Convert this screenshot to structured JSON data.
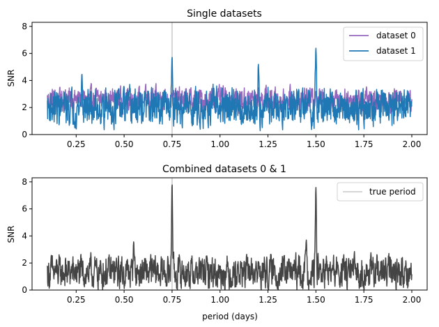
{
  "chart_data": [
    {
      "type": "line",
      "title": "Single datasets",
      "xlabel": "",
      "ylabel": "SNR",
      "xlim": [
        0.02,
        2.08
      ],
      "ylim": [
        0,
        8.3
      ],
      "xticks": [
        "0.25",
        "0.50",
        "0.75",
        "1.00",
        "1.25",
        "1.50",
        "1.75",
        "2.00"
      ],
      "yticks": [
        "0",
        "2",
        "4",
        "6",
        "8"
      ],
      "grid": false,
      "legend": "top-right",
      "vline": {
        "x": 0.75,
        "color": "#c8c8c8"
      },
      "series": [
        {
          "name": "dataset 0",
          "color": "#9467bd",
          "x_range": [
            0.1,
            2.0
          ],
          "baseline": 2.6,
          "spread": 1.3,
          "peaks": [
            {
              "x": 0.75,
              "y": 3.0
            },
            {
              "x": 1.5,
              "y": 3.2
            }
          ]
        },
        {
          "name": "dataset 1",
          "color": "#1f77b4",
          "x_range": [
            0.1,
            2.0
          ],
          "baseline": 2.0,
          "spread": 2.0,
          "peaks": [
            {
              "x": 0.75,
              "y": 5.8
            },
            {
              "x": 1.5,
              "y": 6.4
            },
            {
              "x": 1.2,
              "y": 5.2
            },
            {
              "x": 0.28,
              "y": 4.5
            }
          ]
        }
      ]
    },
    {
      "type": "line",
      "title": "Combined datasets 0 & 1",
      "xlabel": "period (days)",
      "ylabel": "SNR",
      "xlim": [
        0.02,
        2.08
      ],
      "ylim": [
        0,
        8.3
      ],
      "xticks": [
        "0.25",
        "0.50",
        "0.75",
        "1.00",
        "1.25",
        "1.50",
        "1.75",
        "2.00"
      ],
      "yticks": [
        "0",
        "2",
        "4",
        "6",
        "8"
      ],
      "grid": false,
      "legend": "top-right",
      "vline": {
        "x": 0.75,
        "color": "#c8c8c8",
        "legend": "true period"
      },
      "series": [
        {
          "color": "#444444",
          "x_range": [
            0.1,
            2.0
          ],
          "baseline": 1.3,
          "spread": 1.8,
          "peaks": [
            {
              "x": 0.75,
              "y": 7.9
            },
            {
              "x": 1.5,
              "y": 7.6
            },
            {
              "x": 0.55,
              "y": 3.6
            },
            {
              "x": 1.45,
              "y": 3.7
            }
          ]
        }
      ]
    }
  ]
}
